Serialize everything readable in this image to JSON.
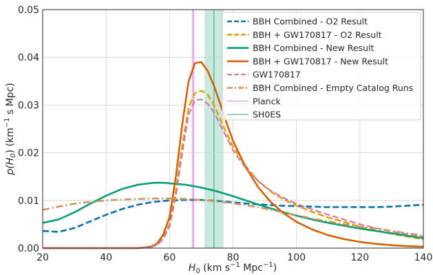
{
  "chart_data": {
    "type": "line",
    "xlabel": "H",
    "xlabel_sub": "0",
    "xlabel_unit_main": " (km s",
    "xlabel_unit_exp1": "−1",
    "xlabel_unit_mid": " Mpc",
    "xlabel_unit_exp2": "−1",
    "xlabel_unit_end": ")",
    "ylabel_pre": "p(H",
    "ylabel_sub": "0",
    "ylabel_mid": ") (km",
    "ylabel_exp": "−1",
    "ylabel_end": " s Mpc)",
    "xlim": [
      20,
      140
    ],
    "ylim": [
      0,
      0.05
    ],
    "xticks": [
      20,
      40,
      60,
      80,
      100,
      120,
      140
    ],
    "xtick_labels": [
      "20",
      "40",
      "60",
      "80",
      "100",
      "120",
      "140"
    ],
    "yticks": [
      0,
      0.01,
      0.02,
      0.03,
      0.04,
      0.05
    ],
    "ytick_labels": [
      "0.00",
      "0.01",
      "0.02",
      "0.03",
      "0.04",
      "0.05"
    ],
    "grid": true,
    "legend_position": "top-right",
    "bands": [
      {
        "name": "Planck",
        "center": 67.4,
        "low": 66.9,
        "high": 67.9,
        "color": "#dd77dd"
      },
      {
        "name": "SH0ES",
        "center": 74.0,
        "low": 71.0,
        "high": 77.0,
        "color": "#2ca77a"
      }
    ],
    "series": [
      {
        "name": "BBH Combined - O2 Result",
        "color": "#0072b2",
        "style": "dashed",
        "width": 2.6,
        "x": [
          20,
          25,
          30,
          35,
          40,
          45,
          50,
          55,
          60,
          65,
          70,
          75,
          80,
          85,
          90,
          95,
          100,
          105,
          110,
          115,
          120,
          125,
          130,
          135,
          140
        ],
        "y": [
          0.0036,
          0.0034,
          0.0042,
          0.0056,
          0.007,
          0.0082,
          0.0091,
          0.0097,
          0.01,
          0.0101,
          0.0101,
          0.0099,
          0.0096,
          0.0093,
          0.0091,
          0.0089,
          0.0088,
          0.0087,
          0.0086,
          0.0086,
          0.0086,
          0.0086,
          0.0087,
          0.0089,
          0.0091
        ]
      },
      {
        "name": "BBH + GW170817 - O2 Result",
        "color": "#e69f00",
        "style": "dashed",
        "width": 2.6,
        "x": [
          20,
          40,
          50,
          54,
          56,
          58,
          60,
          62,
          64,
          66,
          68,
          70,
          72,
          74,
          76,
          78,
          80,
          84,
          88,
          92,
          96,
          100,
          105,
          110,
          115,
          120,
          125,
          130,
          135,
          140
        ],
        "y": [
          0,
          0,
          0,
          0.0002,
          0.0007,
          0.0022,
          0.005,
          0.012,
          0.0215,
          0.0295,
          0.0325,
          0.033,
          0.0322,
          0.03,
          0.027,
          0.024,
          0.0213,
          0.0172,
          0.014,
          0.0118,
          0.0102,
          0.0089,
          0.0076,
          0.0064,
          0.0055,
          0.0045,
          0.0037,
          0.003,
          0.0024,
          0.0019
        ]
      },
      {
        "name": "BBH Combined - New Result",
        "color": "#009e73",
        "style": "solid",
        "width": 2.6,
        "x": [
          20,
          25,
          30,
          35,
          40,
          45,
          50,
          55,
          58,
          60,
          65,
          70,
          75,
          80,
          85,
          90,
          95,
          100,
          105,
          110,
          115,
          120,
          125,
          130,
          135,
          140
        ],
        "y": [
          0.0053,
          0.006,
          0.0075,
          0.0093,
          0.011,
          0.0124,
          0.0133,
          0.0137,
          0.0137,
          0.0136,
          0.0133,
          0.0127,
          0.0119,
          0.0109,
          0.0098,
          0.0087,
          0.0077,
          0.0068,
          0.006,
          0.0053,
          0.0047,
          0.0041,
          0.0036,
          0.0031,
          0.0026,
          0.0021
        ]
      },
      {
        "name": "BBH + GW170817 - New Result",
        "color": "#d55e00",
        "style": "solid",
        "width": 2.6,
        "x": [
          20,
          40,
          50,
          54,
          56,
          58,
          60,
          62,
          64,
          66,
          68,
          70,
          72,
          74,
          76,
          78,
          80,
          84,
          88,
          92,
          96,
          100,
          105,
          110,
          115,
          120,
          125,
          130,
          135,
          140
        ],
        "y": [
          0,
          0,
          0,
          0.0003,
          0.0009,
          0.0028,
          0.0065,
          0.015,
          0.026,
          0.035,
          0.0388,
          0.039,
          0.0372,
          0.034,
          0.0302,
          0.0262,
          0.0225,
          0.017,
          0.0127,
          0.0096,
          0.0073,
          0.0055,
          0.0039,
          0.0027,
          0.0019,
          0.0013,
          0.0009,
          0.0006,
          0.0004,
          0.0003
        ]
      },
      {
        "name": "GW170817",
        "color": "#cc79a7",
        "style": "dashed",
        "width": 2.2,
        "x": [
          20,
          40,
          50,
          54,
          56,
          58,
          60,
          62,
          64,
          66,
          68,
          70,
          72,
          74,
          76,
          78,
          80,
          84,
          88,
          92,
          96,
          100,
          105,
          110,
          115,
          120,
          125,
          130,
          135,
          140
        ],
        "y": [
          0,
          0,
          0,
          0.0002,
          0.0006,
          0.0019,
          0.0045,
          0.011,
          0.02,
          0.028,
          0.031,
          0.0312,
          0.0303,
          0.0285,
          0.0258,
          0.0232,
          0.0205,
          0.0168,
          0.014,
          0.012,
          0.0105,
          0.0093,
          0.0081,
          0.007,
          0.006,
          0.005,
          0.0042,
          0.0035,
          0.0029,
          0.0024
        ]
      },
      {
        "name": "BBH Combined - Empty Catalog Runs",
        "color": "#d09558",
        "style": "dashdot",
        "width": 2.6,
        "x": [
          20,
          25,
          30,
          35,
          40,
          45,
          50,
          55,
          60,
          65,
          70,
          75,
          80,
          85,
          90,
          95,
          100,
          105,
          110,
          115,
          120,
          125,
          130,
          135,
          140
        ],
        "y": [
          0.008,
          0.0087,
          0.0093,
          0.0097,
          0.01,
          0.0102,
          0.0103,
          0.0104,
          0.0104,
          0.0103,
          0.0101,
          0.0098,
          0.0094,
          0.0089,
          0.0083,
          0.0076,
          0.0069,
          0.0062,
          0.0056,
          0.005,
          0.0045,
          0.0041,
          0.0036,
          0.0031,
          0.0026
        ]
      }
    ]
  }
}
